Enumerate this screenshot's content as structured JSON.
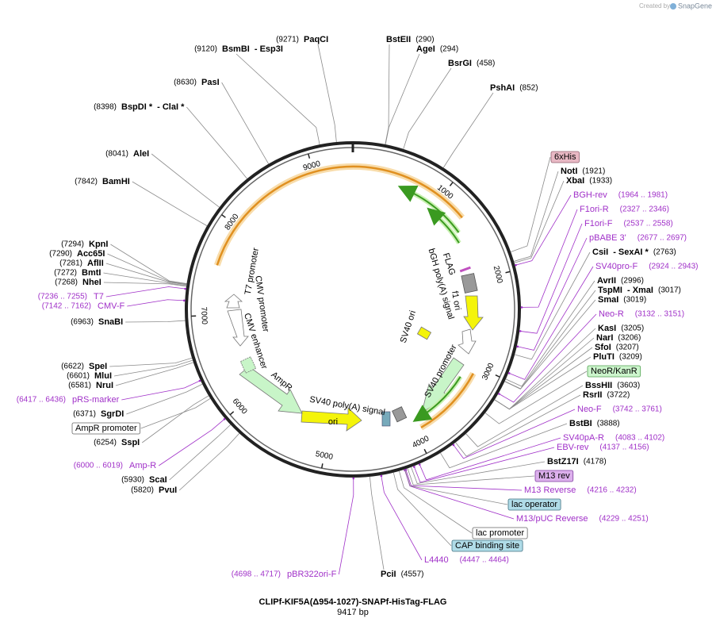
{
  "credit": {
    "created_by": "Created by",
    "app": "SnapGene"
  },
  "title": "CLIPf-KIF5A(Δ954-1027)-SNAPf-HisTag-FLAG",
  "size": "9417 bp",
  "ticks": [
    "1000",
    "2000",
    "3000",
    "4000",
    "5000",
    "6000",
    "7000",
    "8000",
    "9000"
  ],
  "sites": [
    {
      "name": "PaqCI",
      "pos": "(9271)"
    },
    {
      "name": "BsmBI",
      "alt": "- Esp3I",
      "pos": "(9120)"
    },
    {
      "name": "BstEII",
      "pos": "(290)"
    },
    {
      "name": "AgeI",
      "pos": "(294)"
    },
    {
      "name": "BsrGI",
      "pos": "(458)"
    },
    {
      "name": "PshAI",
      "pos": "(852)"
    },
    {
      "name": "PasI",
      "pos": "(8630)"
    },
    {
      "name": "BspDI *",
      "alt": "- ClaI *",
      "pos": "(8398)"
    },
    {
      "name": "AleI",
      "pos": "(8041)"
    },
    {
      "name": "BamHI",
      "pos": "(7842)"
    },
    {
      "name": "KpnI",
      "pos": "(7294)"
    },
    {
      "name": "Acc65I",
      "pos": "(7290)"
    },
    {
      "name": "AflII",
      "pos": "(7281)"
    },
    {
      "name": "BmtI",
      "pos": "(7272)"
    },
    {
      "name": "NheI",
      "pos": "(7268)"
    },
    {
      "name": "SnaBI",
      "pos": "(6963)"
    },
    {
      "name": "SpeI",
      "pos": "(6622)"
    },
    {
      "name": "MluI",
      "pos": "(6601)"
    },
    {
      "name": "NruI",
      "pos": "(6581)"
    },
    {
      "name": "SgrDI",
      "pos": "(6371)"
    },
    {
      "name": "SspI",
      "pos": "(6254)"
    },
    {
      "name": "ScaI",
      "pos": "(5930)"
    },
    {
      "name": "PvuI",
      "pos": "(5820)"
    },
    {
      "name": "PciI",
      "pos": "(4557)"
    },
    {
      "name": "BstZ17I",
      "pos": "(4178)"
    },
    {
      "name": "BstBI",
      "pos": "(3888)"
    },
    {
      "name": "RsrII",
      "pos": "(3722)"
    },
    {
      "name": "BssHII",
      "pos": "(3603)"
    },
    {
      "name": "PluTI",
      "pos": "(3209)"
    },
    {
      "name": "SfoI",
      "pos": "(3207)"
    },
    {
      "name": "NarI",
      "pos": "(3206)"
    },
    {
      "name": "KasI",
      "pos": "(3205)"
    },
    {
      "name": "SmaI",
      "pos": "(3019)"
    },
    {
      "name": "TspMI",
      "alt": "- XmaI",
      "pos": "(3017)"
    },
    {
      "name": "AvrII",
      "pos": "(2996)"
    },
    {
      "name": "CsiI",
      "alt": "- SexAI *",
      "pos": "(2763)"
    },
    {
      "name": "XbaI",
      "pos": "(1933)"
    },
    {
      "name": "NotI",
      "pos": "(1921)"
    }
  ],
  "primers": [
    {
      "name": "BGH-rev",
      "range": "(1964 .. 1981)"
    },
    {
      "name": "F1ori-R",
      "range": "(2327 .. 2346)"
    },
    {
      "name": "F1ori-F",
      "range": "(2537 .. 2558)"
    },
    {
      "name": "pBABE 3'",
      "range": "(2677 .. 2697)"
    },
    {
      "name": "SV40pro-F",
      "range": "(2924 .. 2943)"
    },
    {
      "name": "Neo-R",
      "range": "(3132 .. 3151)"
    },
    {
      "name": "Neo-F",
      "range": "(3742 .. 3761)"
    },
    {
      "name": "SV40pA-R",
      "range": "(4083 .. 4102)"
    },
    {
      "name": "EBV-rev",
      "range": "(4137 .. 4156)"
    },
    {
      "name": "M13 Reverse",
      "range": "(4216 .. 4232)"
    },
    {
      "name": "M13/pUC Reverse",
      "range": "(4229 .. 4251)"
    },
    {
      "name": "L4440",
      "range": "(4447 .. 4464)"
    },
    {
      "name": "pBR322ori-F",
      "range": "(4698 .. 4717)"
    },
    {
      "name": "Amp-R",
      "range": "(6000 .. 6019)"
    },
    {
      "name": "pRS-marker",
      "range": "(6417 .. 6436)"
    },
    {
      "name": "T7",
      "range": "(7236 .. 7255)"
    },
    {
      "name": "CMV-F",
      "range": "(7142 .. 7162)"
    }
  ],
  "boxes": [
    "6xHis",
    "NeoR/KanR",
    "M13 rev",
    "lac operator",
    "lac promoter",
    "CAP binding site",
    "AmpR promoter"
  ],
  "features": [
    "FLAG",
    "bGH poly(A) signal",
    "f1 ori",
    "SV40 promoter",
    "SV40 ori",
    "T7 promoter",
    "CMV promoter",
    "CMV enhancer",
    "AmpR",
    "ori",
    "SV40 poly(A) signal"
  ]
}
